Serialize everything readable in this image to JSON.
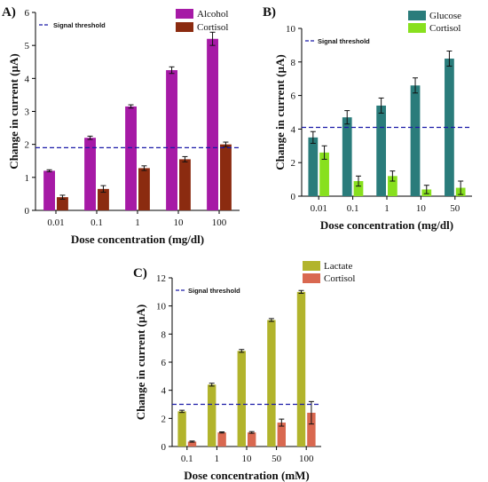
{
  "threshold_label": "Signal threshold",
  "chart_data": [
    {
      "panel": "A)",
      "type": "bar",
      "xlabel": "Dose concentration (mg/dl)",
      "ylabel": "Change in current (µA)",
      "ylim": [
        0,
        6
      ],
      "yticks": [
        "0",
        "1",
        "2",
        "3",
        "4",
        "5",
        "6"
      ],
      "categories": [
        "0.01",
        "0.1",
        "1",
        "10",
        "100"
      ],
      "threshold": 1.9,
      "legend_position": "top-right",
      "series": [
        {
          "name": "Alcohol",
          "color": "#a61aa6",
          "values": [
            1.2,
            2.2,
            3.15,
            4.25,
            5.2
          ],
          "errors": [
            0.03,
            0.05,
            0.05,
            0.1,
            0.2
          ]
        },
        {
          "name": "Cortisol",
          "color": "#8b2b10",
          "values": [
            0.4,
            0.65,
            1.28,
            1.55,
            2.0
          ],
          "errors": [
            0.06,
            0.1,
            0.07,
            0.08,
            0.07
          ]
        }
      ]
    },
    {
      "panel": "B)",
      "type": "bar",
      "xlabel": "Dose concentration (mg/dl)",
      "ylabel": "Change in current (µA)",
      "ylim": [
        0,
        10
      ],
      "yticks": [
        "0",
        "2",
        "4",
        "6",
        "8",
        "10"
      ],
      "categories": [
        "0.01",
        "0.1",
        "1",
        "10",
        "50"
      ],
      "threshold": 4.1,
      "legend_position": "top-right",
      "series": [
        {
          "name": "Glucose",
          "color": "#2a7c7b",
          "values": [
            3.5,
            4.7,
            5.4,
            6.6,
            8.2
          ],
          "errors": [
            0.35,
            0.4,
            0.45,
            0.45,
            0.45
          ]
        },
        {
          "name": "Cortisol",
          "color": "#88e01e",
          "values": [
            2.6,
            0.9,
            1.2,
            0.4,
            0.5
          ],
          "errors": [
            0.4,
            0.3,
            0.3,
            0.25,
            0.4
          ]
        }
      ]
    },
    {
      "panel": "C)",
      "type": "bar",
      "xlabel": "Dose concentration (mM)",
      "ylabel": "Change in current (µA)",
      "ylim": [
        0,
        12
      ],
      "yticks": [
        "0",
        "2",
        "4",
        "6",
        "8",
        "10",
        "12"
      ],
      "categories": [
        "0.1",
        "1",
        "10",
        "50",
        "100"
      ],
      "threshold": 3.0,
      "legend_position": "top-right",
      "series": [
        {
          "name": "Lactate",
          "color": "#b2b42c",
          "values": [
            2.5,
            4.4,
            6.8,
            9.0,
            11.0
          ],
          "errors": [
            0.08,
            0.1,
            0.1,
            0.1,
            0.1
          ]
        },
        {
          "name": "Cortisol",
          "color": "#d96850",
          "values": [
            0.35,
            1.0,
            1.0,
            1.7,
            2.4
          ],
          "errors": [
            0.04,
            0.04,
            0.06,
            0.25,
            0.8
          ]
        }
      ]
    }
  ]
}
